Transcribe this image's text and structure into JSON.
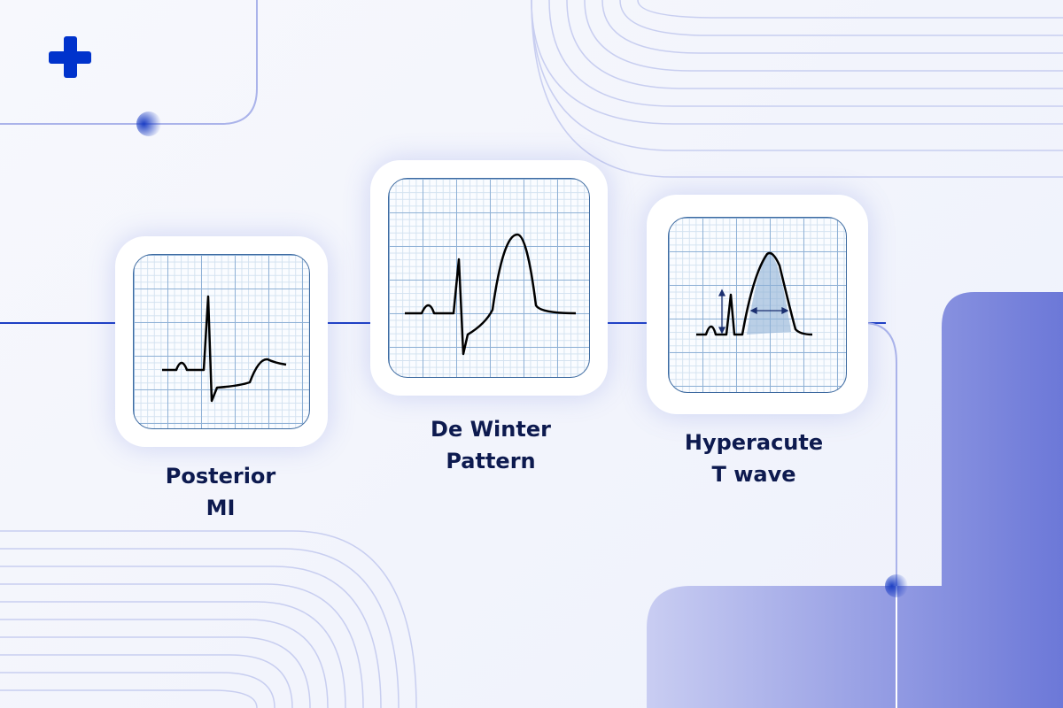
{
  "logo": {
    "icon": "medical-cross-icon",
    "color": "#0033cc"
  },
  "colors": {
    "accent": "#1d3fc4",
    "panel": "#7b87dc",
    "text": "#0d1a4f"
  },
  "cards": [
    {
      "label_line1": "Posterior",
      "label_line2": "MI"
    },
    {
      "label_line1": "De Winter",
      "label_line2": "Pattern"
    },
    {
      "label_line1": "Hyperacute",
      "label_line2": "T wave"
    }
  ]
}
